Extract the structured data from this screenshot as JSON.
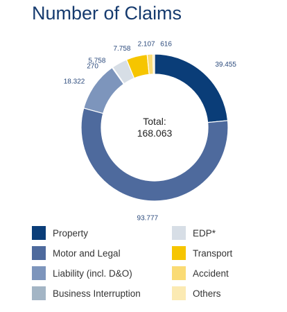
{
  "title": "Number of Claims",
  "chart_data": {
    "type": "pie",
    "total_label": "Total:",
    "total_value": "168.063",
    "slices": [
      {
        "name": "Property",
        "value": 39455,
        "label": "39.455",
        "color": "#0a3d78"
      },
      {
        "name": "Motor and Legal",
        "value": 93777,
        "label": "93.777",
        "color": "#4e6a9d"
      },
      {
        "name": "Liability (incl. D&O)",
        "value": 18322,
        "label": "18.322",
        "color": "#7d95bc"
      },
      {
        "name": "Business Interruption",
        "value": 270,
        "label": "270",
        "color": "#a3b5c5"
      },
      {
        "name": "EDP*",
        "value": 5758,
        "label": "5.758",
        "color": "#d7dee6"
      },
      {
        "name": "Transport",
        "value": 7758,
        "label": "7.758",
        "color": "#f6c500"
      },
      {
        "name": "Accident",
        "value": 2107,
        "label": "2.107",
        "color": "#fadb75"
      },
      {
        "name": "Others",
        "value": 616,
        "label": "616",
        "color": "#fbeab3"
      }
    ]
  }
}
